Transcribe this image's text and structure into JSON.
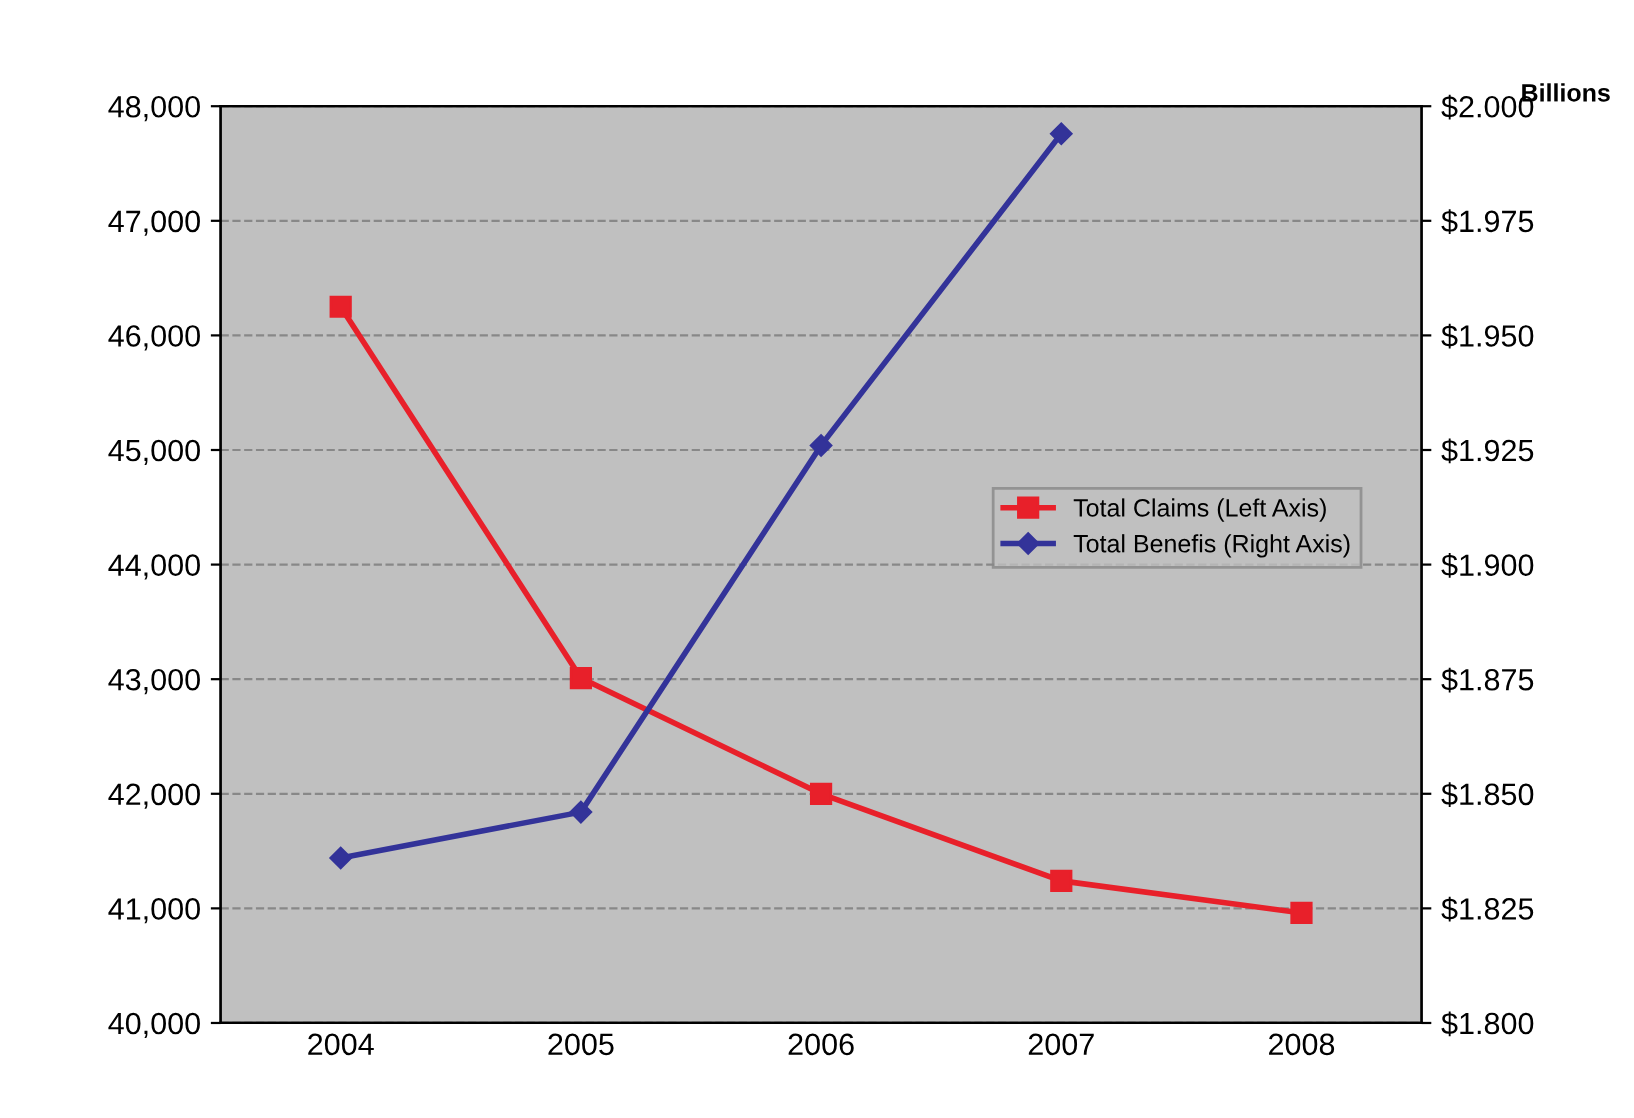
{
  "chart_data": {
    "type": "line",
    "categories": [
      "2004",
      "2005",
      "2006",
      "2007",
      "2008"
    ],
    "series": [
      {
        "name": "Total Claims (Left Axis)",
        "color": "#e8202a",
        "values": [
          46250,
          43010,
          42000,
          41240,
          40960
        ],
        "marker": "square"
      },
      {
        "name": "Total Benefis (Right Axis)",
        "color": "#333399",
        "values": [
          1.836,
          1.846,
          1.926,
          1.994,
          null
        ],
        "marker": "diamond",
        "axis": "y2"
      }
    ],
    "ylim": [
      40000,
      48000
    ],
    "yticks": [
      {
        "value": 40000,
        "label": "40,000"
      },
      {
        "value": 41000,
        "label": "41,000"
      },
      {
        "value": 42000,
        "label": "42,000"
      },
      {
        "value": 43000,
        "label": "43,000"
      },
      {
        "value": 44000,
        "label": "44,000"
      },
      {
        "value": 45000,
        "label": "45,000"
      },
      {
        "value": 46000,
        "label": "46,000"
      },
      {
        "value": 47000,
        "label": "47,000"
      },
      {
        "value": 48000,
        "label": "48,000"
      }
    ],
    "y2lim": [
      1.8,
      2.0
    ],
    "y2ticks": [
      {
        "value": 1.8,
        "label": "$1.800"
      },
      {
        "value": 1.825,
        "label": "$1.825"
      },
      {
        "value": 1.85,
        "label": "$1.850"
      },
      {
        "value": 1.875,
        "label": "$1.875"
      },
      {
        "value": 1.9,
        "label": "$1.900"
      },
      {
        "value": 1.925,
        "label": "$1.925"
      },
      {
        "value": 1.95,
        "label": "$1.950"
      },
      {
        "value": 1.975,
        "label": "$1.975"
      },
      {
        "value": 2.0,
        "label": "$2.000"
      }
    ],
    "y2label": "Billions",
    "grid": "y",
    "legend": "right",
    "line_style": "solid"
  }
}
